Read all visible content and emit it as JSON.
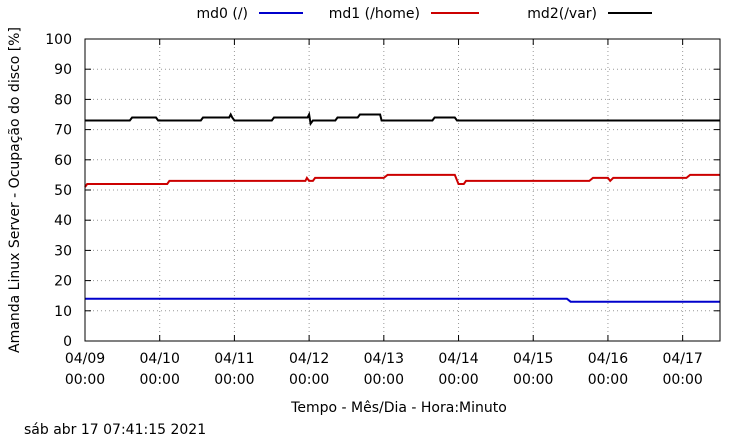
{
  "chart_data": {
    "type": "line",
    "title": "",
    "ylabel": "Amanda Linux Server - Ocupação do disco [%]",
    "xlabel": "Tempo - Mês/Dia - Hora:Minuto",
    "ylim": [
      0,
      100
    ],
    "xlim": [
      0,
      8.5
    ],
    "yticks": [
      0,
      10,
      20,
      30,
      40,
      50,
      60,
      70,
      80,
      90,
      100
    ],
    "xticks": [
      {
        "x": 0,
        "date": "04/09",
        "time": "00:00"
      },
      {
        "x": 1,
        "date": "04/10",
        "time": "00:00"
      },
      {
        "x": 2,
        "date": "04/11",
        "time": "00:00"
      },
      {
        "x": 3,
        "date": "04/12",
        "time": "00:00"
      },
      {
        "x": 4,
        "date": "04/13",
        "time": "00:00"
      },
      {
        "x": 5,
        "date": "04/14",
        "time": "00:00"
      },
      {
        "x": 6,
        "date": "04/15",
        "time": "00:00"
      },
      {
        "x": 7,
        "date": "04/16",
        "time": "00:00"
      },
      {
        "x": 8,
        "date": "04/17",
        "time": "00:00"
      }
    ],
    "grid": true,
    "legend_position": "top",
    "series": [
      {
        "name": "md0 (/)",
        "color": "#0000cc",
        "points": [
          [
            0,
            14
          ],
          [
            6.45,
            14
          ],
          [
            6.5,
            13
          ],
          [
            8.5,
            13
          ]
        ]
      },
      {
        "name": "md1 (/home)",
        "color": "#cc0000",
        "points": [
          [
            0,
            51
          ],
          [
            0.03,
            52
          ],
          [
            1.1,
            52
          ],
          [
            1.13,
            53
          ],
          [
            2.95,
            53
          ],
          [
            2.97,
            54
          ],
          [
            3.0,
            53
          ],
          [
            3.05,
            53
          ],
          [
            3.08,
            54
          ],
          [
            4.0,
            54
          ],
          [
            4.05,
            55
          ],
          [
            4.95,
            55
          ],
          [
            5.0,
            52
          ],
          [
            5.07,
            52
          ],
          [
            5.1,
            53
          ],
          [
            6.75,
            53
          ],
          [
            6.8,
            54
          ],
          [
            7.0,
            54
          ],
          [
            7.03,
            53
          ],
          [
            7.07,
            54
          ],
          [
            8.05,
            54
          ],
          [
            8.1,
            55
          ],
          [
            8.5,
            55
          ]
        ]
      },
      {
        "name": "md2(/var)",
        "color": "#000000",
        "points": [
          [
            0,
            73
          ],
          [
            0.6,
            73
          ],
          [
            0.63,
            74
          ],
          [
            0.95,
            74
          ],
          [
            0.98,
            73
          ],
          [
            1.55,
            73
          ],
          [
            1.58,
            74
          ],
          [
            1.93,
            74
          ],
          [
            1.95,
            75
          ],
          [
            1.97,
            74
          ],
          [
            2.0,
            73
          ],
          [
            2.5,
            73
          ],
          [
            2.53,
            74
          ],
          [
            2.98,
            74
          ],
          [
            3.0,
            75
          ],
          [
            3.02,
            72
          ],
          [
            3.05,
            73
          ],
          [
            3.35,
            73
          ],
          [
            3.38,
            74
          ],
          [
            3.65,
            74
          ],
          [
            3.68,
            75
          ],
          [
            3.95,
            75
          ],
          [
            3.97,
            73
          ],
          [
            4.65,
            73
          ],
          [
            4.68,
            74
          ],
          [
            4.95,
            74
          ],
          [
            4.98,
            73
          ],
          [
            8.5,
            73
          ]
        ]
      }
    ]
  },
  "footer": {
    "timestamp": "sáb abr 17 07:41:15 2021"
  }
}
